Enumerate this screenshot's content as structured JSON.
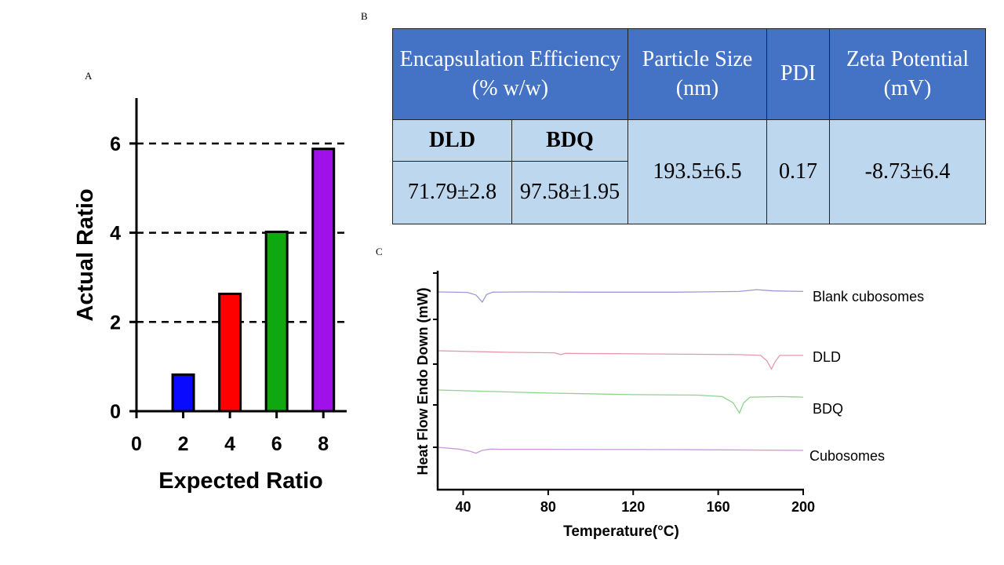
{
  "panels": {
    "a": "A",
    "b": "B",
    "c": "C"
  },
  "chart_data": [
    {
      "type": "bar",
      "xlabel": "Expected Ratio",
      "ylabel": "Actual Ratio",
      "x_ticks": [
        0,
        2,
        4,
        6,
        8
      ],
      "y_ticks": [
        0,
        2,
        4,
        6
      ],
      "xlim": [
        0,
        9
      ],
      "ylim": [
        0,
        7
      ],
      "reference_lines_y": [
        2,
        4,
        6
      ],
      "bars": [
        {
          "x": 2,
          "value": 0.82,
          "color": "#0a0aff"
        },
        {
          "x": 4,
          "value": 2.63,
          "color": "#ff0000"
        },
        {
          "x": 6,
          "value": 4.02,
          "color": "#10a810"
        },
        {
          "x": 8,
          "value": 5.88,
          "color": "#a010e8"
        }
      ]
    },
    {
      "type": "table",
      "headers": {
        "encapsulation": "Encapsulation Efficiency (% w/w)",
        "particle_size": "Particle Size (nm)",
        "pdi": "PDI",
        "zeta": "Zeta Potential (mV)"
      },
      "subheaders": {
        "dld": "DLD",
        "bdq": "BDQ"
      },
      "values": {
        "dld": "71.79±2.8",
        "bdq": "97.58±1.95",
        "particle_size": "193.5±6.5",
        "pdi": "0.17",
        "zeta": "-8.73±6.4"
      },
      "colors": {
        "header": "#4472c4",
        "body": "#bdd7ee"
      }
    },
    {
      "type": "line",
      "xlabel": "Temperature(°C)",
      "ylabel": "Heat Flow Endo Down (mW)",
      "x_ticks": [
        40,
        80,
        120,
        160,
        200
      ],
      "xlim": [
        28,
        200
      ],
      "series": [
        {
          "name": "Blank cubosomes",
          "color": "#9a9ad8",
          "points": [
            [
              28,
              0
            ],
            [
              42,
              -0.1
            ],
            [
              46,
              -0.6
            ],
            [
              49,
              -2.0
            ],
            [
              51,
              -0.5
            ],
            [
              54,
              -0.05
            ],
            [
              70,
              0
            ],
            [
              100,
              -0.05
            ],
            [
              140,
              -0.05
            ],
            [
              170,
              0.1
            ],
            [
              178,
              0.45
            ],
            [
              186,
              0.2
            ],
            [
              200,
              0.1
            ]
          ]
        },
        {
          "name": "DLD",
          "color": "#e29aa8",
          "points": [
            [
              28,
              0
            ],
            [
              60,
              -0.3
            ],
            [
              83,
              -0.4
            ],
            [
              86,
              -0.75
            ],
            [
              88,
              -0.5
            ],
            [
              120,
              -0.6
            ],
            [
              170,
              -0.75
            ],
            [
              180,
              -0.9
            ],
            [
              183,
              -2.0
            ],
            [
              185,
              -3.6
            ],
            [
              187,
              -2.0
            ],
            [
              189,
              -0.9
            ],
            [
              200,
              -0.9
            ]
          ]
        },
        {
          "name": "BDQ",
          "color": "#8fd28f",
          "points": [
            [
              28,
              0
            ],
            [
              80,
              -0.6
            ],
            [
              120,
              -0.9
            ],
            [
              150,
              -1.0
            ],
            [
              162,
              -1.3
            ],
            [
              167,
              -2.5
            ],
            [
              170,
              -4.5
            ],
            [
              172,
              -2.5
            ],
            [
              175,
              -1.4
            ],
            [
              190,
              -1.3
            ],
            [
              200,
              -1.4
            ]
          ]
        },
        {
          "name": "Cubosomes",
          "color": "#c89ad8",
          "points": [
            [
              28,
              0
            ],
            [
              38,
              -0.35
            ],
            [
              43,
              -0.75
            ],
            [
              46,
              -1.15
            ],
            [
              49,
              -0.6
            ],
            [
              53,
              -0.35
            ],
            [
              58,
              -0.4
            ],
            [
              80,
              -0.4
            ],
            [
              140,
              -0.45
            ],
            [
              200,
              -0.6
            ]
          ]
        }
      ]
    }
  ]
}
